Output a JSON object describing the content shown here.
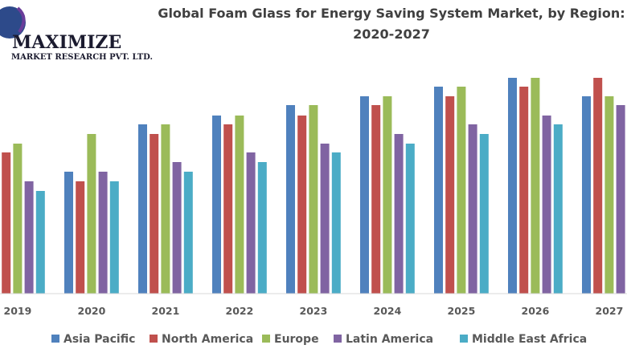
{
  "logo": {
    "name": "MAXIMIZE",
    "tagline": "MARKET RESEARCH PVT. LTD."
  },
  "chart_data": {
    "type": "bar",
    "title": "Global Foam Glass for Energy Saving System Market, by Region:",
    "title_line2": "2020-2027",
    "xlabel": "",
    "ylabel": "",
    "y_axis_shown": false,
    "grid": false,
    "legend_position": "bottom",
    "categories": [
      "2019",
      "2020",
      "2021",
      "2022",
      "2023",
      "2024",
      "2025",
      "2026",
      "2027"
    ],
    "series": [
      {
        "name": "Asia Pacific",
        "color": "#4f81bd",
        "values": [
          null,
          152,
          211,
          222,
          235,
          246,
          258,
          269,
          246
        ]
      },
      {
        "name": "North America",
        "color": "#c0504d",
        "values": [
          176,
          140,
          199,
          211,
          222,
          235,
          246,
          258,
          269
        ]
      },
      {
        "name": "Europe",
        "color": "#9bbb59",
        "values": [
          187,
          199,
          211,
          222,
          235,
          246,
          258,
          269,
          246
        ]
      },
      {
        "name": "Latin America",
        "color": "#8064a2",
        "values": [
          140,
          152,
          164,
          176,
          187,
          199,
          211,
          222,
          235
        ]
      },
      {
        "name": "Middle East Africa",
        "color": "#4bacc6",
        "values": [
          128,
          140,
          152,
          164,
          176,
          187,
          199,
          211,
          null
        ]
      }
    ],
    "ylim": [
      0,
      280
    ]
  }
}
